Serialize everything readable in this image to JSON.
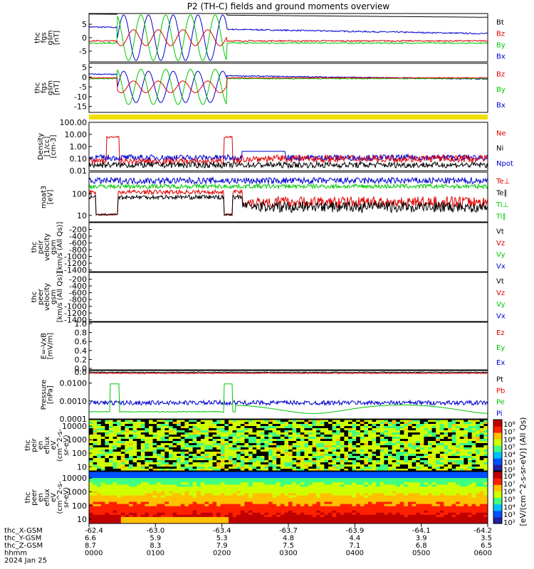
{
  "title": "P2 (TH-C) fields and ground moments overview",
  "colors": {
    "black": "#000000",
    "red": "#e00000",
    "green": "#00c800",
    "blue": "#0000d0",
    "yellow": "#f0e000"
  },
  "chart_data": [
    {
      "type": "line",
      "id": "fgs_gse",
      "ylabel": [
        "thc",
        "fgs",
        "gsm",
        "[nT]"
      ],
      "ylim": [
        -9,
        9
      ],
      "yticks": [
        "5",
        "0",
        "-5"
      ],
      "legend": [
        {
          "name": "Bt",
          "color": "black"
        },
        {
          "name": "Bz",
          "color": "red"
        },
        {
          "name": "By",
          "color": "green"
        },
        {
          "name": "Bx",
          "color": "blue"
        }
      ]
    },
    {
      "type": "line",
      "id": "fgs_gsm",
      "ylabel": [
        "thc",
        "fgs",
        "gsm",
        "[nT]"
      ],
      "ylim": [
        -18,
        7
      ],
      "yticks": [
        "5",
        "0",
        "-5",
        "-10",
        "-15"
      ],
      "legend": [
        {
          "name": "Bz",
          "color": "red"
        },
        {
          "name": "By",
          "color": "green"
        },
        {
          "name": "Bx",
          "color": "blue"
        }
      ]
    },
    {
      "type": "line",
      "id": "density",
      "log": true,
      "ylabel": [
        "Density",
        "[1/cc]",
        "[cm-3]"
      ],
      "ylim": [
        0.01,
        100
      ],
      "yticks": [
        "100.00",
        "10.00",
        "1.00",
        "0.10",
        "0.01"
      ],
      "legend": [
        {
          "name": "Ne",
          "color": "red"
        },
        {
          "name": "Ni",
          "color": "black"
        },
        {
          "name": "Npot",
          "color": "blue"
        }
      ]
    },
    {
      "type": "line",
      "id": "temp",
      "log": true,
      "ylabel": [
        "moat3",
        "[eV]"
      ],
      "ylim": [
        5,
        1000
      ],
      "yticks": [
        "100",
        "10"
      ],
      "legend": [
        {
          "name": "Te⊥",
          "color": "red"
        },
        {
          "name": "Te∥",
          "color": "black"
        },
        {
          "name": "Ti⊥",
          "color": "green"
        },
        {
          "name": "Ti∥",
          "color": "green"
        }
      ]
    },
    {
      "type": "line",
      "id": "vi",
      "ylabel": [
        "thc",
        "peir",
        "velocity",
        "gsm",
        "[km/s (All Qs)]"
      ],
      "ylim": [
        -1450,
        0
      ],
      "yticks": [
        "-200",
        "-400",
        "-600",
        "-800",
        "-1000",
        "-1200",
        "-1400"
      ],
      "legend": [
        {
          "name": "Vt",
          "color": "black"
        },
        {
          "name": "Vz",
          "color": "red"
        },
        {
          "name": "Vy",
          "color": "green"
        },
        {
          "name": "Vx",
          "color": "blue"
        }
      ]
    },
    {
      "type": "line",
      "id": "ve",
      "ylabel": [
        "thc",
        "peer",
        "velocity",
        "gsm",
        "[km/s (All Qs)]"
      ],
      "ylim": [
        -1450,
        0
      ],
      "yticks": [
        "-200",
        "-400",
        "-600",
        "-800",
        "-1000",
        "-1200",
        "-1400"
      ],
      "legend": [
        {
          "name": "Vt",
          "color": "black"
        },
        {
          "name": "Vz",
          "color": "red"
        },
        {
          "name": "Vy",
          "color": "green"
        },
        {
          "name": "Vx",
          "color": "blue"
        }
      ]
    },
    {
      "type": "line",
      "id": "efield",
      "ylabel": [
        "E=-VxB",
        "[mV/m]"
      ],
      "ylim": [
        0,
        1.0
      ],
      "yticks": [
        "1.0",
        "0.8",
        "0.6",
        "0.4",
        "0.2",
        "0.0"
      ],
      "legend": [
        {
          "name": "Ez",
          "color": "red"
        },
        {
          "name": "Ey",
          "color": "green"
        },
        {
          "name": "Ex",
          "color": "blue"
        }
      ]
    },
    {
      "type": "line",
      "id": "pressure",
      "log": true,
      "ylabel": [
        "Pressure",
        "[nPa]"
      ],
      "ylim": [
        0.0001,
        0.05
      ],
      "yticks": [
        "0.0",
        "0.0100",
        "0.0010",
        "0.0001"
      ],
      "legend": [
        {
          "name": "Pt",
          "color": "black"
        },
        {
          "name": "Pb",
          "color": "red"
        },
        {
          "name": "Pe",
          "color": "green"
        },
        {
          "name": "Pi",
          "color": "blue"
        }
      ]
    },
    {
      "type": "heatmap",
      "id": "peir_spec",
      "log": true,
      "ylabel": [
        "thc",
        "peir",
        "en",
        "eflux",
        "eV",
        "(cm^2-s-",
        "sr-eV)"
      ],
      "ylim": [
        5,
        30000
      ],
      "yticks": [
        "10000",
        "1000",
        "100",
        "10"
      ]
    },
    {
      "type": "heatmap",
      "id": "peer_spec",
      "log": true,
      "ylabel": [
        "thc",
        "peer",
        "en",
        "eflux",
        "eV",
        "(cm^2-s-",
        "sr-eV)"
      ],
      "ylim": [
        5,
        30000
      ],
      "yticks": [
        "10000",
        "1000",
        "100",
        "10"
      ]
    }
  ],
  "colorbar": {
    "label": "[eV/(cm^2-s-sr-eV)] (All Qs)",
    "upper_ticks": [
      "10⁸",
      "10⁷",
      "10⁶",
      "10⁵",
      "10⁴",
      "10³",
      "10²"
    ],
    "lower_ticks": [
      "10⁸",
      "10⁷",
      "10⁶",
      "10⁵",
      "10⁴",
      "10³",
      "10²"
    ]
  },
  "x_axis": {
    "rows": [
      {
        "label": "thc_X-GSM",
        "values": [
          "-62.4",
          "-63.0",
          "-63.4",
          "-63.7",
          "-63.9",
          "-64.1",
          "-64.2"
        ]
      },
      {
        "label": "thc_Y-GSM",
        "values": [
          "6.6",
          "5.9",
          "5.3",
          "4.8",
          "4.4",
          "3.9",
          "3.5"
        ]
      },
      {
        "label": "thc_Z-GSM",
        "values": [
          "8.7",
          "8.3",
          "7.9",
          "7.5",
          "7.1",
          "6.8",
          "6.5"
        ]
      },
      {
        "label": "hhmm",
        "values": [
          "0000",
          "0100",
          "0200",
          "0300",
          "0400",
          "0500",
          "0600"
        ]
      }
    ],
    "date": "2024 Jan 25"
  }
}
